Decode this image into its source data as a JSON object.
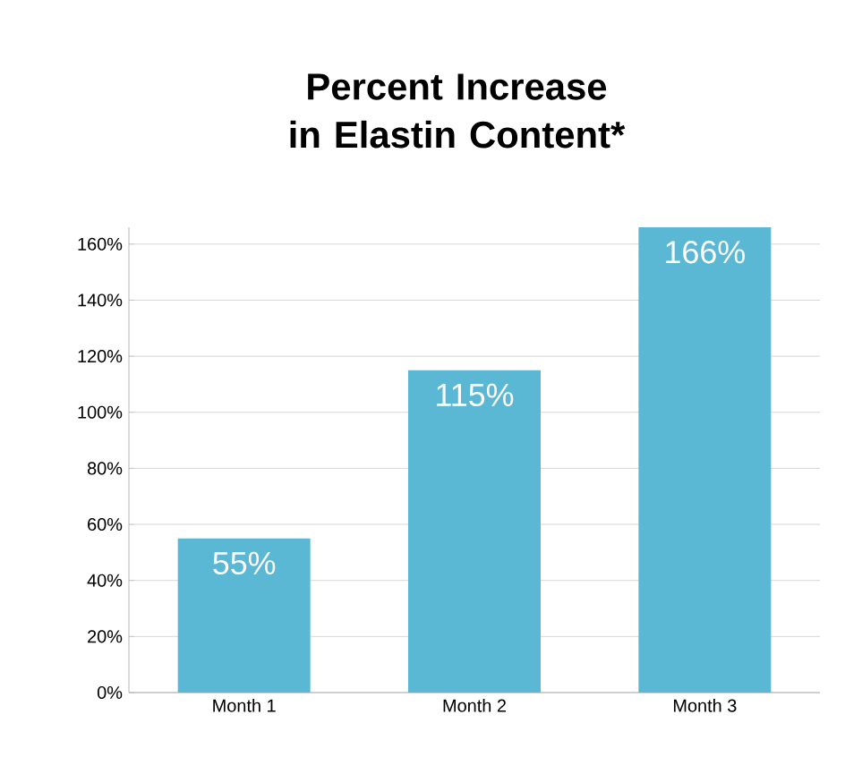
{
  "chart_data": {
    "type": "bar",
    "title": "Percent Increase in Elastin Content*",
    "categories": [
      "Month 1",
      "Month 2",
      "Month 3"
    ],
    "values": [
      55,
      115,
      166
    ],
    "value_labels": [
      "55%",
      "115%",
      "166%"
    ],
    "color": "#5bb8d4",
    "ylim": [
      0,
      166
    ],
    "yticks": [
      {
        "value": 0,
        "label": "0%"
      },
      {
        "value": 20,
        "label": "20%"
      },
      {
        "value": 40,
        "label": "40%"
      },
      {
        "value": 60,
        "label": "60%"
      },
      {
        "value": 80,
        "label": "80%"
      },
      {
        "value": 100,
        "label": "100%"
      },
      {
        "value": 120,
        "label": "120%"
      },
      {
        "value": 140,
        "label": "140%"
      },
      {
        "value": 160,
        "label": "160%"
      }
    ],
    "grid": "y"
  }
}
